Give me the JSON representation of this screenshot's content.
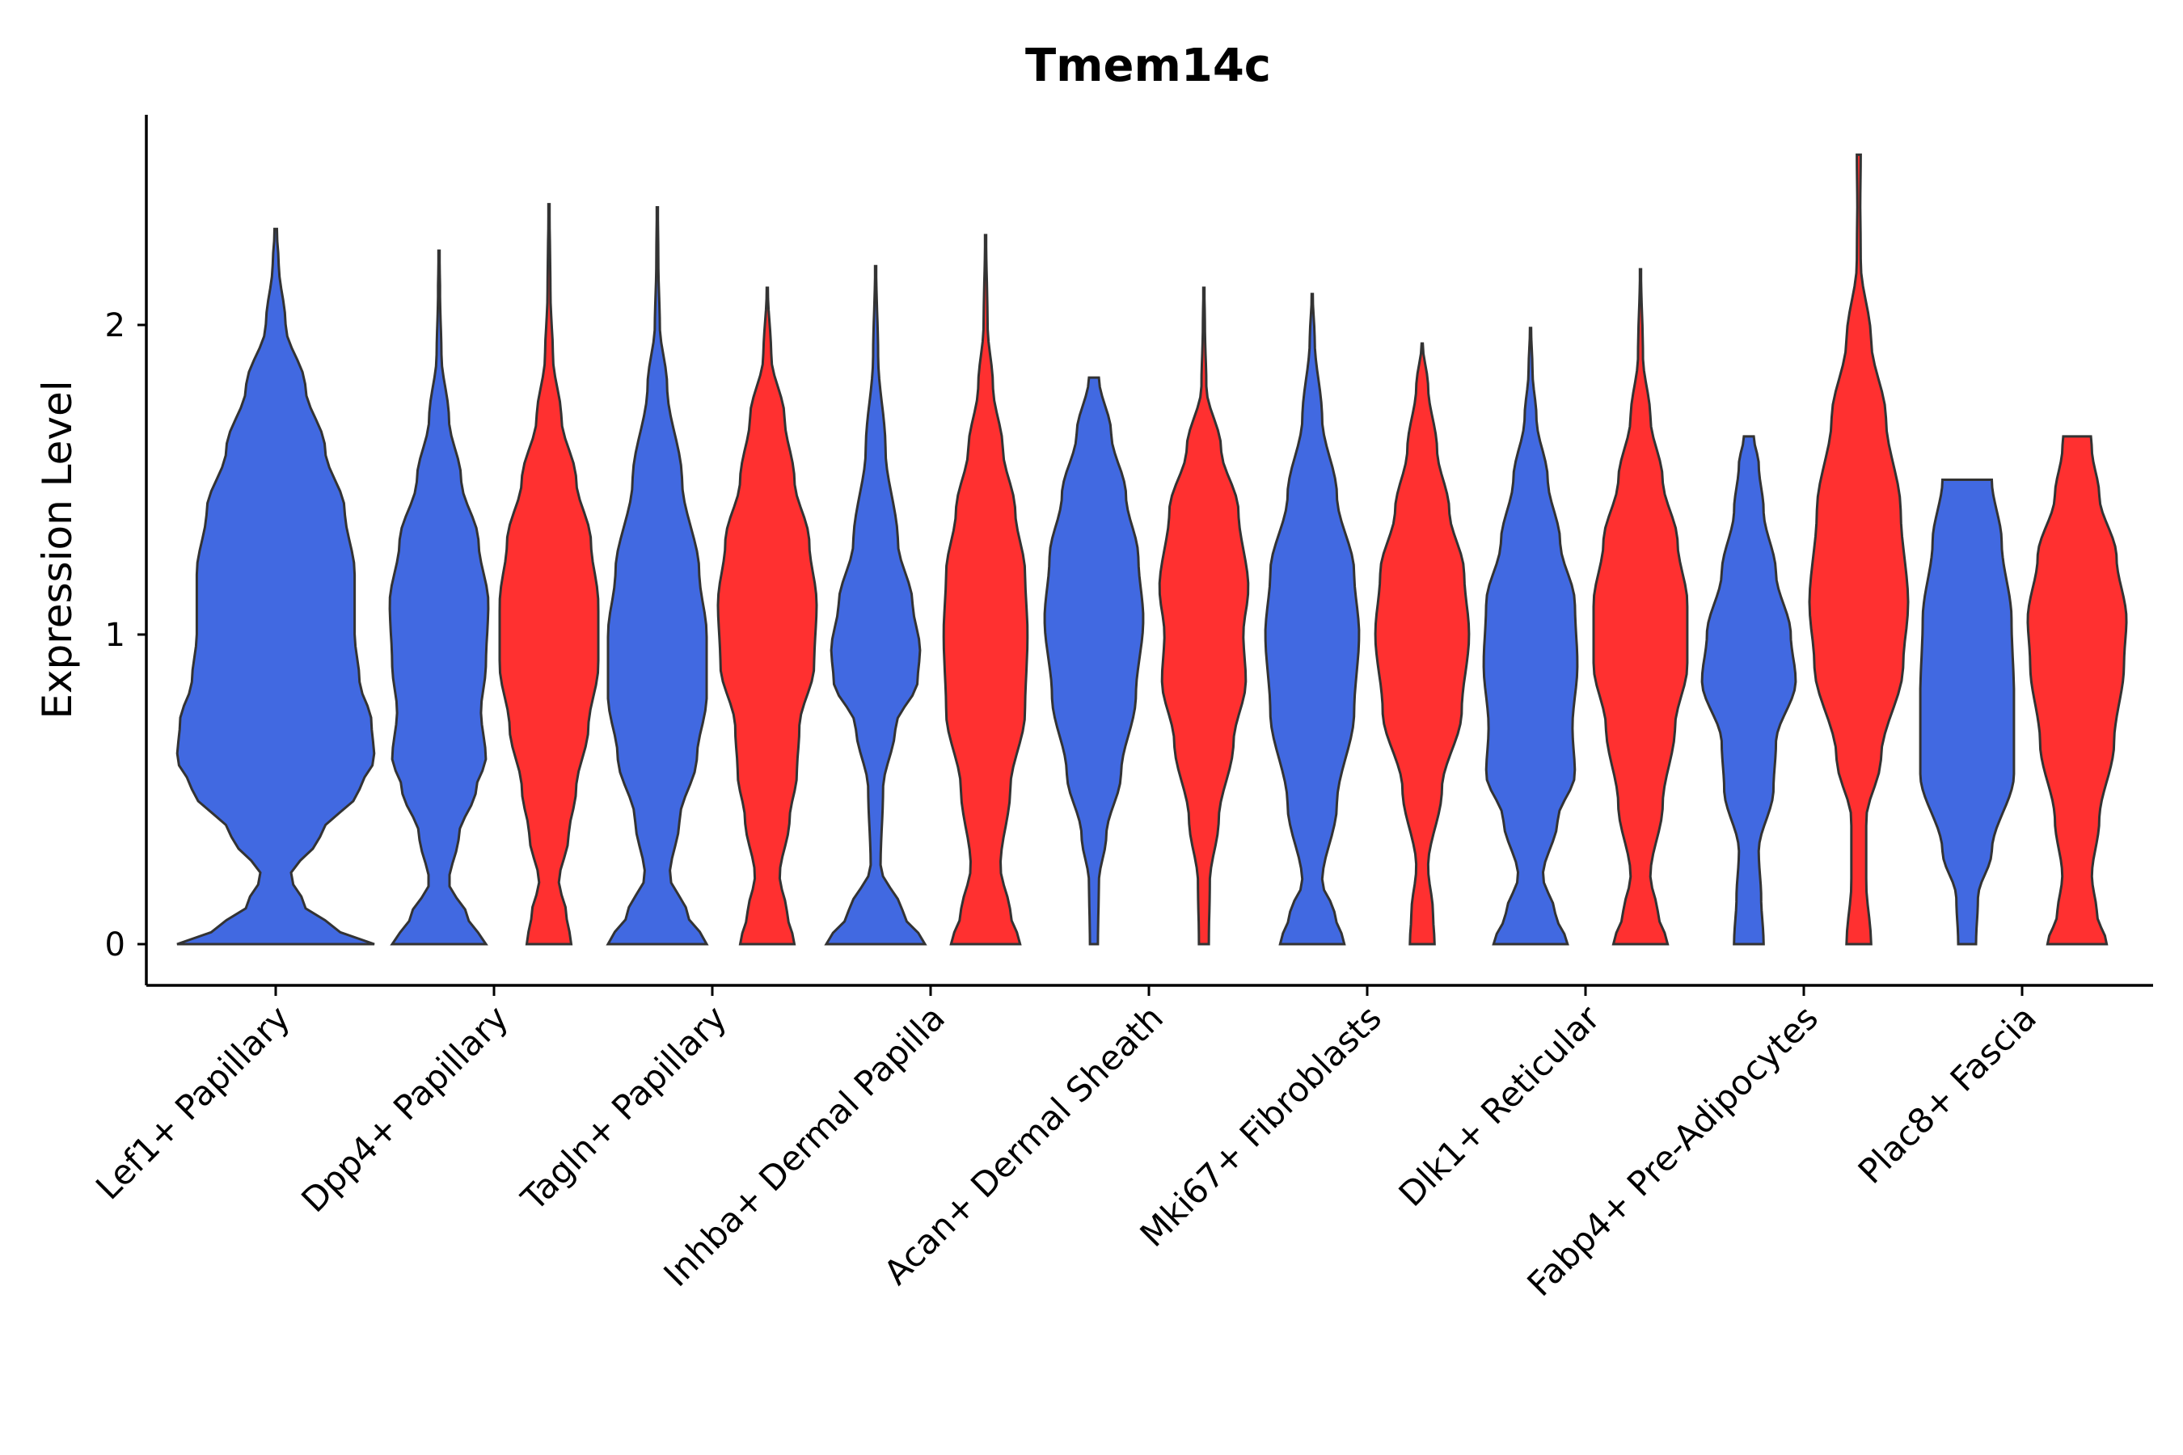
{
  "chart_data": {
    "type": "violin",
    "title": "Tmem14c",
    "xlabel": "",
    "ylabel": "Expression Level",
    "ylim": [
      -0.13,
      2.68
    ],
    "yticks": [
      0,
      1,
      2
    ],
    "grid": false,
    "legend": "none",
    "series_colors": [
      "#4169E1",
      "#FF3030"
    ],
    "categories": [
      "Lef1+ Papillary",
      "Dpp4+ Papillary",
      "Tagln+ Papillary",
      "Inhba+ Dermal Papilla",
      "Acan+ Dermal Sheath",
      "Mki67+ Fibroblasts",
      "Dlk1+ Reticular",
      "Fabp4+ Pre-Adipocytes",
      "Plac8+ Fascia"
    ],
    "violins": [
      {
        "category": "Lef1+ Papillary",
        "group": 0,
        "max": 2.31,
        "profile": [
          [
            0,
            1.0
          ],
          [
            0.05,
            0.6
          ],
          [
            0.12,
            0.3
          ],
          [
            0.22,
            0.15
          ],
          [
            0.35,
            0.45
          ],
          [
            0.5,
            0.85
          ],
          [
            0.6,
            1.0
          ],
          [
            0.72,
            0.97
          ],
          [
            0.85,
            0.85
          ],
          [
            1.0,
            0.8
          ],
          [
            1.2,
            0.8
          ],
          [
            1.4,
            0.7
          ],
          [
            1.6,
            0.5
          ],
          [
            1.8,
            0.3
          ],
          [
            2.0,
            0.1
          ],
          [
            2.2,
            0.03
          ],
          [
            2.31,
            0.01
          ]
        ]
      },
      {
        "category": "Dpp4+ Papillary",
        "group": 0,
        "max": 2.24,
        "profile": [
          [
            0,
            0.95
          ],
          [
            0.08,
            0.6
          ],
          [
            0.2,
            0.2
          ],
          [
            0.35,
            0.4
          ],
          [
            0.5,
            0.75
          ],
          [
            0.6,
            0.95
          ],
          [
            0.75,
            0.85
          ],
          [
            0.9,
            0.95
          ],
          [
            1.1,
            1.0
          ],
          [
            1.3,
            0.8
          ],
          [
            1.5,
            0.45
          ],
          [
            1.7,
            0.2
          ],
          [
            1.9,
            0.05
          ],
          [
            2.1,
            0.02
          ],
          [
            2.24,
            0.01
          ]
        ]
      },
      {
        "category": "Dpp4+ Papillary",
        "group": 1,
        "max": 2.39,
        "profile": [
          [
            0,
            0.45
          ],
          [
            0.1,
            0.35
          ],
          [
            0.2,
            0.2
          ],
          [
            0.35,
            0.4
          ],
          [
            0.5,
            0.55
          ],
          [
            0.7,
            0.8
          ],
          [
            0.9,
            1.0
          ],
          [
            1.1,
            1.0
          ],
          [
            1.3,
            0.85
          ],
          [
            1.5,
            0.55
          ],
          [
            1.7,
            0.25
          ],
          [
            1.9,
            0.08
          ],
          [
            2.1,
            0.03
          ],
          [
            2.39,
            0.01
          ]
        ]
      },
      {
        "category": "Tagln+ Papillary",
        "group": 0,
        "max": 2.38,
        "profile": [
          [
            0,
            1.0
          ],
          [
            0.1,
            0.6
          ],
          [
            0.22,
            0.25
          ],
          [
            0.4,
            0.45
          ],
          [
            0.6,
            0.8
          ],
          [
            0.8,
            1.0
          ],
          [
            1.0,
            1.0
          ],
          [
            1.2,
            0.85
          ],
          [
            1.5,
            0.5
          ],
          [
            1.8,
            0.2
          ],
          [
            2.0,
            0.05
          ],
          [
            2.2,
            0.02
          ],
          [
            2.38,
            0.01
          ]
        ]
      },
      {
        "category": "Tagln+ Papillary",
        "group": 1,
        "max": 2.12,
        "profile": [
          [
            0,
            0.55
          ],
          [
            0.1,
            0.4
          ],
          [
            0.22,
            0.25
          ],
          [
            0.4,
            0.45
          ],
          [
            0.55,
            0.6
          ],
          [
            0.7,
            0.65
          ],
          [
            0.9,
            0.95
          ],
          [
            1.1,
            1.0
          ],
          [
            1.3,
            0.85
          ],
          [
            1.5,
            0.55
          ],
          [
            1.7,
            0.35
          ],
          [
            1.9,
            0.08
          ],
          [
            2.12,
            0.01
          ]
        ]
      },
      {
        "category": "Inhba+ Dermal Papilla",
        "group": 0,
        "max": 2.19,
        "profile": [
          [
            0,
            1.0
          ],
          [
            0.1,
            0.55
          ],
          [
            0.25,
            0.1
          ],
          [
            0.5,
            0.15
          ],
          [
            0.7,
            0.4
          ],
          [
            0.85,
            0.85
          ],
          [
            0.95,
            0.9
          ],
          [
            1.1,
            0.75
          ],
          [
            1.3,
            0.45
          ],
          [
            1.6,
            0.2
          ],
          [
            1.9,
            0.05
          ],
          [
            2.19,
            0.01
          ]
        ]
      },
      {
        "category": "Inhba+ Dermal Papilla",
        "group": 1,
        "max": 2.29,
        "profile": [
          [
            0,
            0.7
          ],
          [
            0.1,
            0.5
          ],
          [
            0.25,
            0.3
          ],
          [
            0.5,
            0.5
          ],
          [
            0.75,
            0.8
          ],
          [
            1.0,
            0.85
          ],
          [
            1.2,
            0.8
          ],
          [
            1.4,
            0.6
          ],
          [
            1.6,
            0.35
          ],
          [
            1.8,
            0.15
          ],
          [
            2.0,
            0.04
          ],
          [
            2.29,
            0.01
          ]
        ]
      },
      {
        "category": "Acan+ Dermal Sheath",
        "group": 0,
        "max": 1.83,
        "profile": [
          [
            0,
            0.08
          ],
          [
            0.2,
            0.1
          ],
          [
            0.35,
            0.25
          ],
          [
            0.55,
            0.55
          ],
          [
            0.8,
            0.85
          ],
          [
            1.05,
            1.0
          ],
          [
            1.25,
            0.9
          ],
          [
            1.45,
            0.65
          ],
          [
            1.65,
            0.35
          ],
          [
            1.83,
            0.1
          ]
        ]
      },
      {
        "category": "Acan+ Dermal Sheath",
        "group": 1,
        "max": 2.12,
        "profile": [
          [
            0,
            0.1
          ],
          [
            0.2,
            0.12
          ],
          [
            0.4,
            0.3
          ],
          [
            0.65,
            0.6
          ],
          [
            0.85,
            0.85
          ],
          [
            1.0,
            0.8
          ],
          [
            1.15,
            0.9
          ],
          [
            1.4,
            0.7
          ],
          [
            1.6,
            0.35
          ],
          [
            1.8,
            0.05
          ],
          [
            2.0,
            0.02
          ],
          [
            2.12,
            0.01
          ]
        ]
      },
      {
        "category": "Mki67+ Fibroblasts",
        "group": 0,
        "max": 2.1,
        "profile": [
          [
            0,
            0.65
          ],
          [
            0.1,
            0.45
          ],
          [
            0.2,
            0.2
          ],
          [
            0.45,
            0.5
          ],
          [
            0.75,
            0.85
          ],
          [
            1.0,
            0.95
          ],
          [
            1.2,
            0.85
          ],
          [
            1.45,
            0.5
          ],
          [
            1.7,
            0.2
          ],
          [
            1.95,
            0.05
          ],
          [
            2.1,
            0.01
          ]
        ]
      },
      {
        "category": "Mki67+ Fibroblasts",
        "group": 1,
        "max": 1.94,
        "profile": [
          [
            0,
            0.25
          ],
          [
            0.1,
            0.22
          ],
          [
            0.25,
            0.12
          ],
          [
            0.5,
            0.4
          ],
          [
            0.75,
            0.8
          ],
          [
            1.0,
            0.95
          ],
          [
            1.2,
            0.85
          ],
          [
            1.4,
            0.55
          ],
          [
            1.6,
            0.3
          ],
          [
            1.8,
            0.12
          ],
          [
            1.94,
            0.01
          ]
        ]
      },
      {
        "category": "Dlk1+ Reticular",
        "group": 0,
        "max": 1.99,
        "profile": [
          [
            0,
            0.75
          ],
          [
            0.1,
            0.5
          ],
          [
            0.22,
            0.25
          ],
          [
            0.4,
            0.55
          ],
          [
            0.55,
            0.9
          ],
          [
            0.7,
            0.85
          ],
          [
            0.9,
            0.95
          ],
          [
            1.1,
            0.9
          ],
          [
            1.3,
            0.6
          ],
          [
            1.5,
            0.35
          ],
          [
            1.7,
            0.12
          ],
          [
            1.85,
            0.04
          ],
          [
            1.99,
            0.01
          ]
        ]
      },
      {
        "category": "Dlk1+ Reticular",
        "group": 1,
        "max": 2.18,
        "profile": [
          [
            0,
            0.55
          ],
          [
            0.1,
            0.35
          ],
          [
            0.22,
            0.2
          ],
          [
            0.45,
            0.45
          ],
          [
            0.7,
            0.7
          ],
          [
            0.9,
            0.95
          ],
          [
            1.1,
            0.95
          ],
          [
            1.3,
            0.75
          ],
          [
            1.5,
            0.45
          ],
          [
            1.7,
            0.2
          ],
          [
            1.9,
            0.05
          ],
          [
            2.18,
            0.01
          ]
        ]
      },
      {
        "category": "Fabp4+ Pre-Adipocytes",
        "group": 0,
        "max": 1.64,
        "profile": [
          [
            0,
            0.3
          ],
          [
            0.15,
            0.25
          ],
          [
            0.3,
            0.2
          ],
          [
            0.5,
            0.5
          ],
          [
            0.65,
            0.55
          ],
          [
            0.85,
            0.95
          ],
          [
            1.0,
            0.85
          ],
          [
            1.2,
            0.55
          ],
          [
            1.4,
            0.3
          ],
          [
            1.55,
            0.2
          ],
          [
            1.64,
            0.1
          ]
        ]
      },
      {
        "category": "Fabp4+ Pre-Adipocytes",
        "group": 1,
        "max": 2.55,
        "profile": [
          [
            0,
            0.25
          ],
          [
            0.2,
            0.15
          ],
          [
            0.4,
            0.15
          ],
          [
            0.6,
            0.45
          ],
          [
            0.9,
            0.9
          ],
          [
            1.1,
            1.0
          ],
          [
            1.4,
            0.85
          ],
          [
            1.7,
            0.55
          ],
          [
            1.95,
            0.25
          ],
          [
            2.2,
            0.04
          ],
          [
            2.4,
            0.03
          ],
          [
            2.55,
            0.04
          ]
        ]
      },
      {
        "category": "Plac8+ Fascia",
        "group": 0,
        "max": 1.5,
        "profile": [
          [
            0,
            0.18
          ],
          [
            0.15,
            0.22
          ],
          [
            0.3,
            0.5
          ],
          [
            0.55,
            0.95
          ],
          [
            0.8,
            0.95
          ],
          [
            1.05,
            0.9
          ],
          [
            1.3,
            0.7
          ],
          [
            1.5,
            0.5
          ]
        ]
      },
      {
        "category": "Plac8+ Fascia",
        "group": 1,
        "max": 1.64,
        "profile": [
          [
            0,
            0.6
          ],
          [
            0.1,
            0.4
          ],
          [
            0.22,
            0.3
          ],
          [
            0.4,
            0.45
          ],
          [
            0.65,
            0.75
          ],
          [
            0.9,
            0.95
          ],
          [
            1.05,
            1.0
          ],
          [
            1.25,
            0.8
          ],
          [
            1.45,
            0.45
          ],
          [
            1.6,
            0.3
          ],
          [
            1.64,
            0.28
          ]
        ]
      }
    ]
  }
}
